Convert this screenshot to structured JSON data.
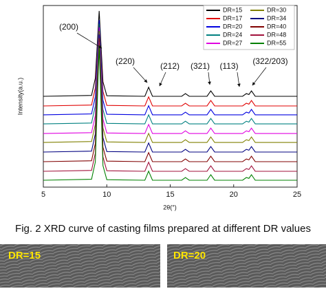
{
  "chart_data": {
    "type": "line",
    "xlabel": "2θ(°)",
    "ylabel": "Intensity(a.u.)",
    "x": [
      5,
      8.8,
      9.1,
      9.4,
      9.7,
      10,
      13.0,
      13.3,
      13.6,
      15.9,
      16.2,
      16.5,
      17.9,
      18.2,
      18.5,
      20.7,
      21.0,
      21.2,
      21.4,
      21.7,
      25
    ],
    "xlim": [
      5,
      25
    ],
    "xticks": [
      5,
      10,
      15,
      20,
      25
    ],
    "ylim": [
      0,
      100
    ],
    "annotations": [
      "(200)",
      "(220)",
      "(212)",
      "(321)",
      "(113)",
      "(322/203)"
    ],
    "legend": "upper right",
    "series": [
      {
        "name": "DR=15",
        "color": "#000000",
        "values": [
          50,
          50.5,
          60,
          97,
          58,
          50.3,
          50,
          55,
          50,
          50,
          51.5,
          50,
          50,
          53,
          50,
          50,
          51.5,
          51,
          53,
          50,
          50
        ]
      },
      {
        "name": "DR=17",
        "color": "#e00000",
        "values": [
          44.7,
          45.2,
          54.7,
          91,
          52.7,
          45,
          44.7,
          49.7,
          44.7,
          44.7,
          46.2,
          44.7,
          44.7,
          47.7,
          44.7,
          44.7,
          46.2,
          45.7,
          47.7,
          44.7,
          44.7
        ]
      },
      {
        "name": "DR=20",
        "color": "#0000e0",
        "values": [
          39.8,
          40.3,
          49.8,
          92,
          47.8,
          40.1,
          39.8,
          44.8,
          39.8,
          39.8,
          41.3,
          39.8,
          39.8,
          42.8,
          39.8,
          39.8,
          41.3,
          40.8,
          42.8,
          39.8,
          39.8
        ]
      },
      {
        "name": "DR=24",
        "color": "#008080",
        "values": [
          34.8,
          35.3,
          44.8,
          90,
          42.8,
          35.1,
          34.8,
          39.8,
          34.8,
          34.8,
          36.3,
          34.8,
          34.8,
          37.8,
          34.8,
          34.8,
          36.3,
          35.8,
          37.8,
          34.8,
          34.8
        ]
      },
      {
        "name": "DR=27",
        "color": "#e000e0",
        "values": [
          29.5,
          30,
          39.5,
          88,
          37.5,
          29.8,
          29.5,
          34.5,
          29.5,
          29.5,
          31,
          29.5,
          29.5,
          32.5,
          29.5,
          29.5,
          31,
          30.5,
          32.5,
          29.5,
          29.5
        ]
      },
      {
        "name": "DR=30",
        "color": "#808000",
        "values": [
          24.6,
          25.1,
          34.6,
          86,
          32.6,
          24.9,
          24.6,
          29.6,
          24.6,
          24.6,
          26.1,
          24.6,
          24.6,
          27.6,
          24.6,
          24.6,
          26.1,
          25.6,
          27.6,
          24.6,
          24.6
        ]
      },
      {
        "name": "DR=34",
        "color": "#000080",
        "values": [
          19.3,
          19.8,
          29.3,
          84,
          27.3,
          19.6,
          19.3,
          24.3,
          19.3,
          19.3,
          20.8,
          19.3,
          19.3,
          22.3,
          19.3,
          19.3,
          20.8,
          20.3,
          22.3,
          19.3,
          19.3
        ]
      },
      {
        "name": "DR=40",
        "color": "#800000",
        "values": [
          14,
          14.5,
          24,
          82,
          22,
          14.3,
          14,
          19,
          14,
          14,
          15.5,
          14,
          14,
          17,
          14,
          14,
          15.5,
          15,
          17,
          14,
          14
        ]
      },
      {
        "name": "DR=48",
        "color": "#a0103a",
        "values": [
          8.7,
          9.2,
          18.7,
          80,
          16.7,
          9,
          8.7,
          13.7,
          8.7,
          8.7,
          10.2,
          8.7,
          8.7,
          11.7,
          8.7,
          8.7,
          10.2,
          9.7,
          11.7,
          8.7,
          8.7
        ]
      },
      {
        "name": "DR=55",
        "color": "#008000",
        "values": [
          3.8,
          4.3,
          13.8,
          78,
          11.8,
          4.1,
          3.8,
          8.8,
          3.8,
          3.8,
          5.3,
          3.8,
          3.8,
          6.8,
          3.8,
          3.8,
          5.3,
          4.8,
          6.8,
          3.8,
          3.8
        ]
      }
    ]
  },
  "caption": "Fig. 2 XRD curve of casting films prepared at different DR values",
  "images": [
    {
      "label": "DR=15"
    },
    {
      "label": "DR=20"
    }
  ]
}
